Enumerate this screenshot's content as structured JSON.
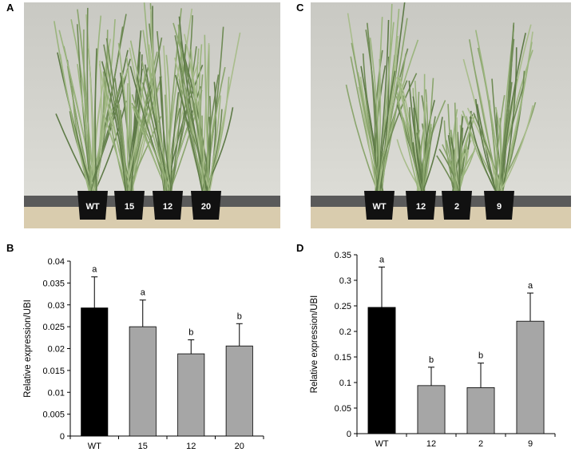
{
  "panels": {
    "A": "A",
    "B": "B",
    "C": "C",
    "D": "D"
  },
  "photos": [
    {
      "pot_labels": [
        "WT",
        "15",
        "12",
        "20"
      ]
    },
    {
      "pot_labels": [
        "WT",
        "12",
        "2",
        "9"
      ]
    }
  ],
  "colors": {
    "wt_bar": "#000000",
    "transgenic_bar": "#a6a6a6",
    "wall": "#d4d4cf",
    "floor": "#d9ccae",
    "baseboard": "#5a5a5a",
    "foliage": "#7f9a63"
  },
  "chart_data": [
    {
      "type": "bar",
      "categories": [
        "WT",
        "15",
        "12",
        "20"
      ],
      "values": [
        0.0293,
        0.025,
        0.0188,
        0.0206
      ],
      "errors": [
        0.0071,
        0.0061,
        0.0032,
        0.0051
      ],
      "significance": [
        "a",
        "a",
        "b",
        "b"
      ],
      "ylabel": "Relative expression/UBI",
      "ylim": [
        0,
        0.04
      ],
      "yticks": [
        "0",
        "0.005",
        "0.01",
        "0.015",
        "0.02",
        "0.025",
        "0.03",
        "0.035",
        "0.04"
      ]
    },
    {
      "type": "bar",
      "categories": [
        "WT",
        "12",
        "2",
        "9"
      ],
      "values": [
        0.247,
        0.094,
        0.09,
        0.22
      ],
      "errors": [
        0.079,
        0.036,
        0.048,
        0.055
      ],
      "significance": [
        "a",
        "b",
        "b",
        "a"
      ],
      "ylabel": "Relative expression/UBI",
      "ylim": [
        0,
        0.35
      ],
      "yticks": [
        "0",
        "0.05",
        "0.1",
        "0.15",
        "0.2",
        "0.25",
        "0.3",
        "0.35"
      ]
    }
  ]
}
